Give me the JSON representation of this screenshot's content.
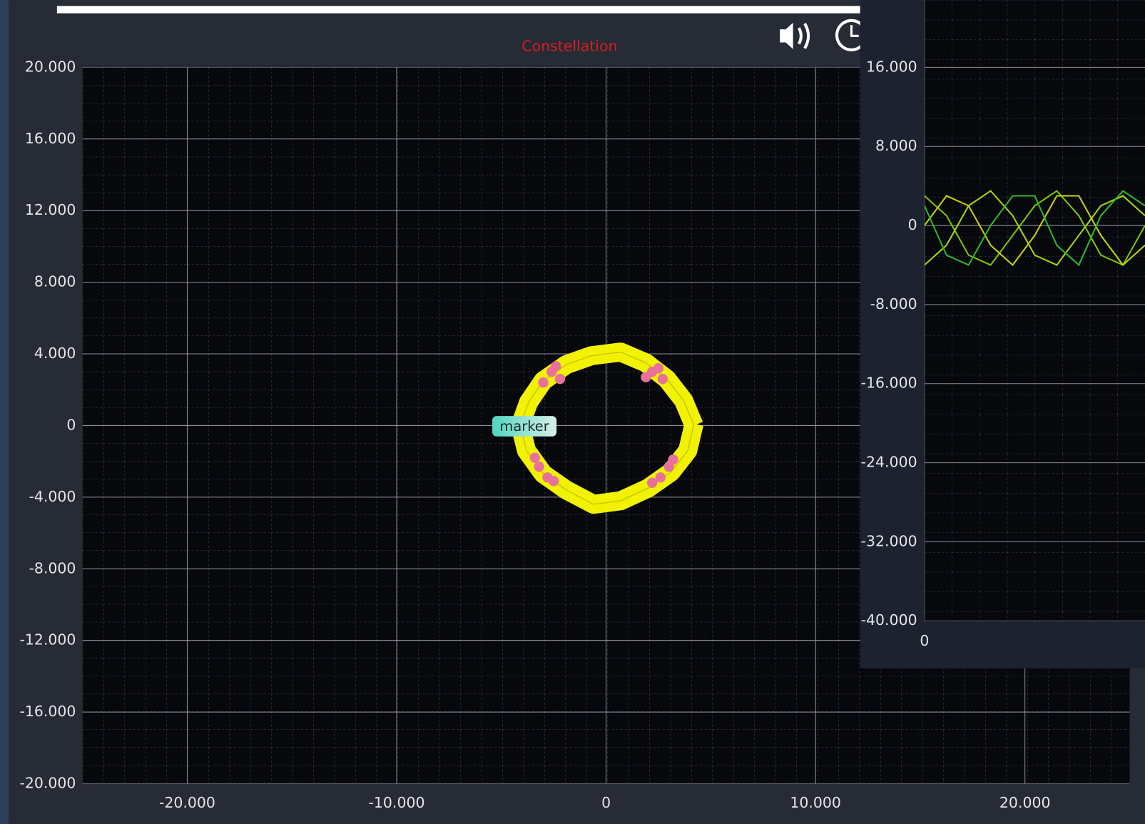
{
  "chart_data": [
    {
      "type": "constellation",
      "title": "Constellation",
      "xlim": [
        -25,
        25
      ],
      "ylim": [
        -20,
        20
      ],
      "xticks": [
        {
          "value": -20,
          "label": "-20.000"
        },
        {
          "value": -10,
          "label": "-10.000"
        },
        0,
        {
          "value": 10,
          "label": "10.000"
        },
        {
          "value": 20,
          "label": "20.000"
        }
      ],
      "yticks": [
        {
          "value": 20,
          "label": "20.000"
        },
        {
          "value": 16,
          "label": "16.000"
        },
        {
          "value": 12,
          "label": "12.000"
        },
        {
          "value": 8,
          "label": "8.000"
        },
        {
          "value": 4,
          "label": "4.000"
        },
        0,
        {
          "value": -4,
          "label": "-4.000"
        },
        {
          "value": -8,
          "label": "-8.000"
        },
        {
          "value": -12,
          "label": "-12.000"
        },
        {
          "value": -16,
          "label": "-16.000"
        },
        {
          "value": -20,
          "label": "-20.000"
        }
      ],
      "grid": true,
      "series": [
        {
          "kind": "line",
          "color": "#ffff00",
          "x": [
            4.2,
            3.7,
            2.9,
            1.9,
            0.7,
            -0.7,
            -1.9,
            -3.0,
            -3.7,
            -4.1,
            -3.8,
            -3.0,
            -1.9,
            -0.6,
            0.7,
            2.0,
            3.1,
            3.9,
            4.2
          ],
          "values": [
            0,
            1.4,
            2.6,
            3.5,
            4.1,
            3.9,
            3.4,
            2.5,
            1.3,
            0,
            -1.4,
            -2.7,
            -3.6,
            -4.4,
            -4.2,
            -3.5,
            -2.6,
            -1.4,
            0.1
          ]
        },
        {
          "kind": "scatter",
          "color": "#e8709a",
          "x": [
            -2.6,
            -2.2,
            -3.0,
            -2.4,
            2.2,
            2.7,
            1.9,
            2.5,
            -3.2,
            -2.8,
            -3.4,
            -2.5,
            2.6,
            3.0,
            2.2,
            3.2
          ],
          "values": [
            3.0,
            2.6,
            2.4,
            3.3,
            3.0,
            2.6,
            2.7,
            3.2,
            -2.3,
            -2.9,
            -1.8,
            -3.1,
            -2.9,
            -2.3,
            -3.2,
            -1.9
          ]
        }
      ],
      "annotation": {
        "text": "marker",
        "x": -3.9,
        "y": 0
      }
    },
    {
      "type": "line",
      "xlim": [
        0,
        100
      ],
      "ylim": [
        -40,
        22.8
      ],
      "xticks": [
        0
      ],
      "yticks": [
        {
          "value": 16,
          "label": "16.000"
        },
        {
          "value": 8,
          "label": "8.000"
        },
        0,
        {
          "value": -8,
          "label": "-8.000"
        },
        {
          "value": -16,
          "label": "-16.000"
        },
        {
          "value": -24,
          "label": "-24.000"
        },
        {
          "value": -32,
          "label": "-32.000"
        },
        {
          "value": -40,
          "label": "-40.000"
        }
      ],
      "grid": true,
      "x": [
        0,
        10,
        20,
        30,
        40,
        50,
        60,
        70,
        80,
        90,
        100
      ],
      "series": [
        {
          "color": "#7ec800",
          "values": [
            3,
            1,
            -3,
            -4,
            -1,
            2,
            3.5,
            1,
            -3,
            -4,
            0
          ]
        },
        {
          "color": "#a8d800",
          "values": [
            -4,
            -2,
            2,
            3.5,
            1,
            -3,
            -4,
            -1,
            2,
            3,
            1
          ]
        },
        {
          "color": "#c8d400",
          "values": [
            0,
            3,
            2,
            -2,
            -4,
            -1,
            3,
            3,
            -1,
            -4,
            -2
          ]
        },
        {
          "color": "#2eb82e",
          "values": [
            2,
            -3,
            -4,
            0,
            3,
            3,
            -2,
            -4,
            1,
            3.5,
            2
          ]
        }
      ]
    }
  ]
}
